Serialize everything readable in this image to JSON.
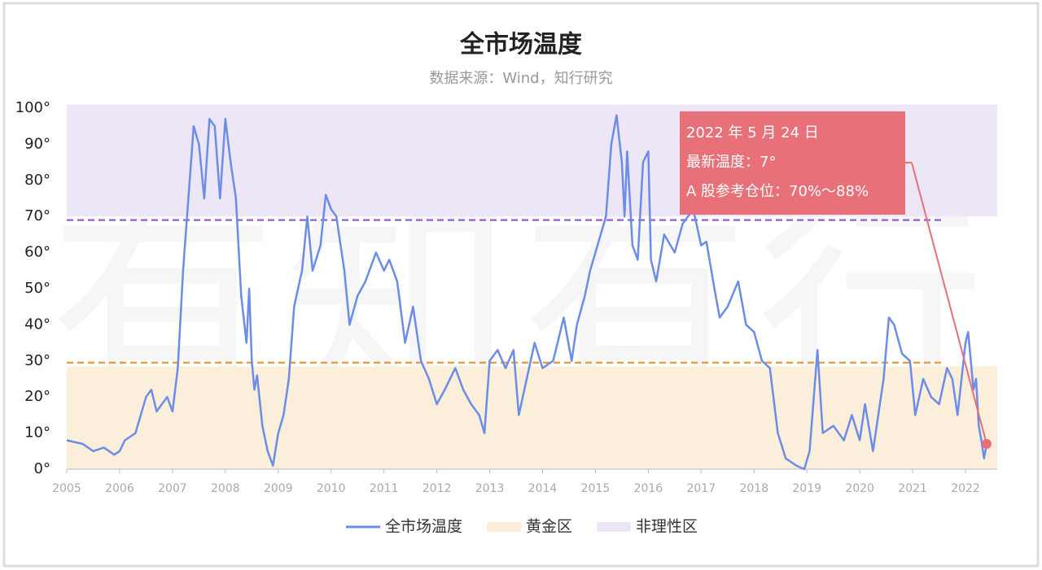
{
  "chart_data": {
    "type": "line",
    "title": "全市场温度",
    "subtitle": "数据来源：Wind，知行研究",
    "watermark": "有知有行",
    "xlim": [
      2005,
      2022.6
    ],
    "xticks": [
      2005,
      2006,
      2007,
      2008,
      2009,
      2010,
      2011,
      2012,
      2013,
      2014,
      2015,
      2016,
      2017,
      2018,
      2019,
      2020,
      2021,
      2022
    ],
    "ylim": [
      0,
      100
    ],
    "yticks": [
      {
        "value": 0,
        "label": "0°"
      },
      {
        "value": 10,
        "label": "10°"
      },
      {
        "value": 20,
        "label": "20°"
      },
      {
        "value": 30,
        "label": "30°"
      },
      {
        "value": 40,
        "label": "40°"
      },
      {
        "value": 50,
        "label": "50°"
      },
      {
        "value": 60,
        "label": "60°"
      },
      {
        "value": 70,
        "label": "70°"
      },
      {
        "value": 80,
        "label": "80°"
      },
      {
        "value": 90,
        "label": "90°"
      },
      {
        "value": 100,
        "label": "100°"
      }
    ],
    "bands": [
      {
        "name": "黄金区",
        "color": "#fbeedb",
        "range": [
          0,
          28.5
        ]
      },
      {
        "name": "非理性区",
        "color": "#ece6f7",
        "range": [
          70,
          101
        ]
      }
    ],
    "reference_lines": [
      {
        "value": 29.5,
        "color": "#dba14b"
      },
      {
        "value": 69,
        "color": "#9b6bd0"
      }
    ],
    "series": [
      {
        "name": "全市场温度",
        "color": "#6b8de8",
        "x": [
          2005,
          2005.3,
          2005.5,
          2005.7,
          2005.9,
          2006.0,
          2006.1,
          2006.3,
          2006.5,
          2006.6,
          2006.7,
          2006.9,
          2007.0,
          2007.1,
          2007.2,
          2007.3,
          2007.4,
          2007.5,
          2007.6,
          2007.7,
          2007.8,
          2007.9,
          2008.0,
          2008.1,
          2008.2,
          2008.3,
          2008.4,
          2008.45,
          2008.5,
          2008.55,
          2008.6,
          2008.7,
          2008.8,
          2008.9,
          2009.0,
          2009.1,
          2009.2,
          2009.3,
          2009.45,
          2009.55,
          2009.65,
          2009.8,
          2009.9,
          2010.0,
          2010.1,
          2010.25,
          2010.35,
          2010.5,
          2010.65,
          2010.85,
          2011.0,
          2011.1,
          2011.25,
          2011.4,
          2011.55,
          2011.7,
          2011.85,
          2012.0,
          2012.15,
          2012.35,
          2012.5,
          2012.65,
          2012.8,
          2012.9,
          2013.0,
          2013.15,
          2013.3,
          2013.45,
          2013.55,
          2013.7,
          2013.85,
          2014.0,
          2014.2,
          2014.4,
          2014.55,
          2014.65,
          2014.8,
          2014.9,
          2015.0,
          2015.1,
          2015.2,
          2015.3,
          2015.4,
          2015.5,
          2015.55,
          2015.6,
          2015.7,
          2015.8,
          2015.9,
          2016.0,
          2016.05,
          2016.15,
          2016.3,
          2016.5,
          2016.65,
          2016.85,
          2017.0,
          2017.1,
          2017.25,
          2017.35,
          2017.5,
          2017.7,
          2017.85,
          2018.0,
          2018.15,
          2018.3,
          2018.45,
          2018.6,
          2018.8,
          2018.95,
          2019.05,
          2019.2,
          2019.3,
          2019.5,
          2019.7,
          2019.85,
          2020.0,
          2020.1,
          2020.25,
          2020.45,
          2020.55,
          2020.65,
          2020.8,
          2020.95,
          2021.05,
          2021.2,
          2021.35,
          2021.5,
          2021.65,
          2021.75,
          2021.85,
          2022.0,
          2022.05,
          2022.15,
          2022.2,
          2022.25,
          2022.3,
          2022.35,
          2022.4
        ],
        "values": [
          8,
          7,
          5,
          6,
          4,
          5,
          8,
          10,
          20,
          22,
          16,
          20,
          16,
          28,
          55,
          75,
          95,
          90,
          75,
          97,
          95,
          75,
          97,
          85,
          75,
          48,
          35,
          50,
          30,
          22,
          26,
          12,
          5,
          1,
          10,
          15,
          25,
          45,
          55,
          70,
          55,
          62,
          76,
          72,
          70,
          55,
          40,
          48,
          52,
          60,
          55,
          58,
          52,
          35,
          45,
          30,
          25,
          18,
          22,
          28,
          22,
          18,
          15,
          10,
          30,
          33,
          28,
          33,
          15,
          25,
          35,
          28,
          30,
          42,
          30,
          40,
          48,
          55,
          60,
          65,
          70,
          90,
          98,
          85,
          70,
          88,
          62,
          58,
          85,
          88,
          58,
          52,
          65,
          60,
          68,
          72,
          62,
          63,
          50,
          42,
          45,
          52,
          40,
          38,
          30,
          28,
          10,
          3,
          1,
          0,
          5,
          33,
          10,
          12,
          8,
          15,
          8,
          18,
          5,
          25,
          42,
          40,
          32,
          30,
          15,
          25,
          20,
          18,
          28,
          25,
          15,
          35,
          38,
          22,
          25,
          12,
          8,
          3,
          7
        ]
      }
    ],
    "annotation": {
      "color": "#e87078",
      "lines": [
        "2022 年 5 月 24 日",
        "最新温度：7°",
        "A 股参考仓位：70%～88%"
      ]
    }
  }
}
